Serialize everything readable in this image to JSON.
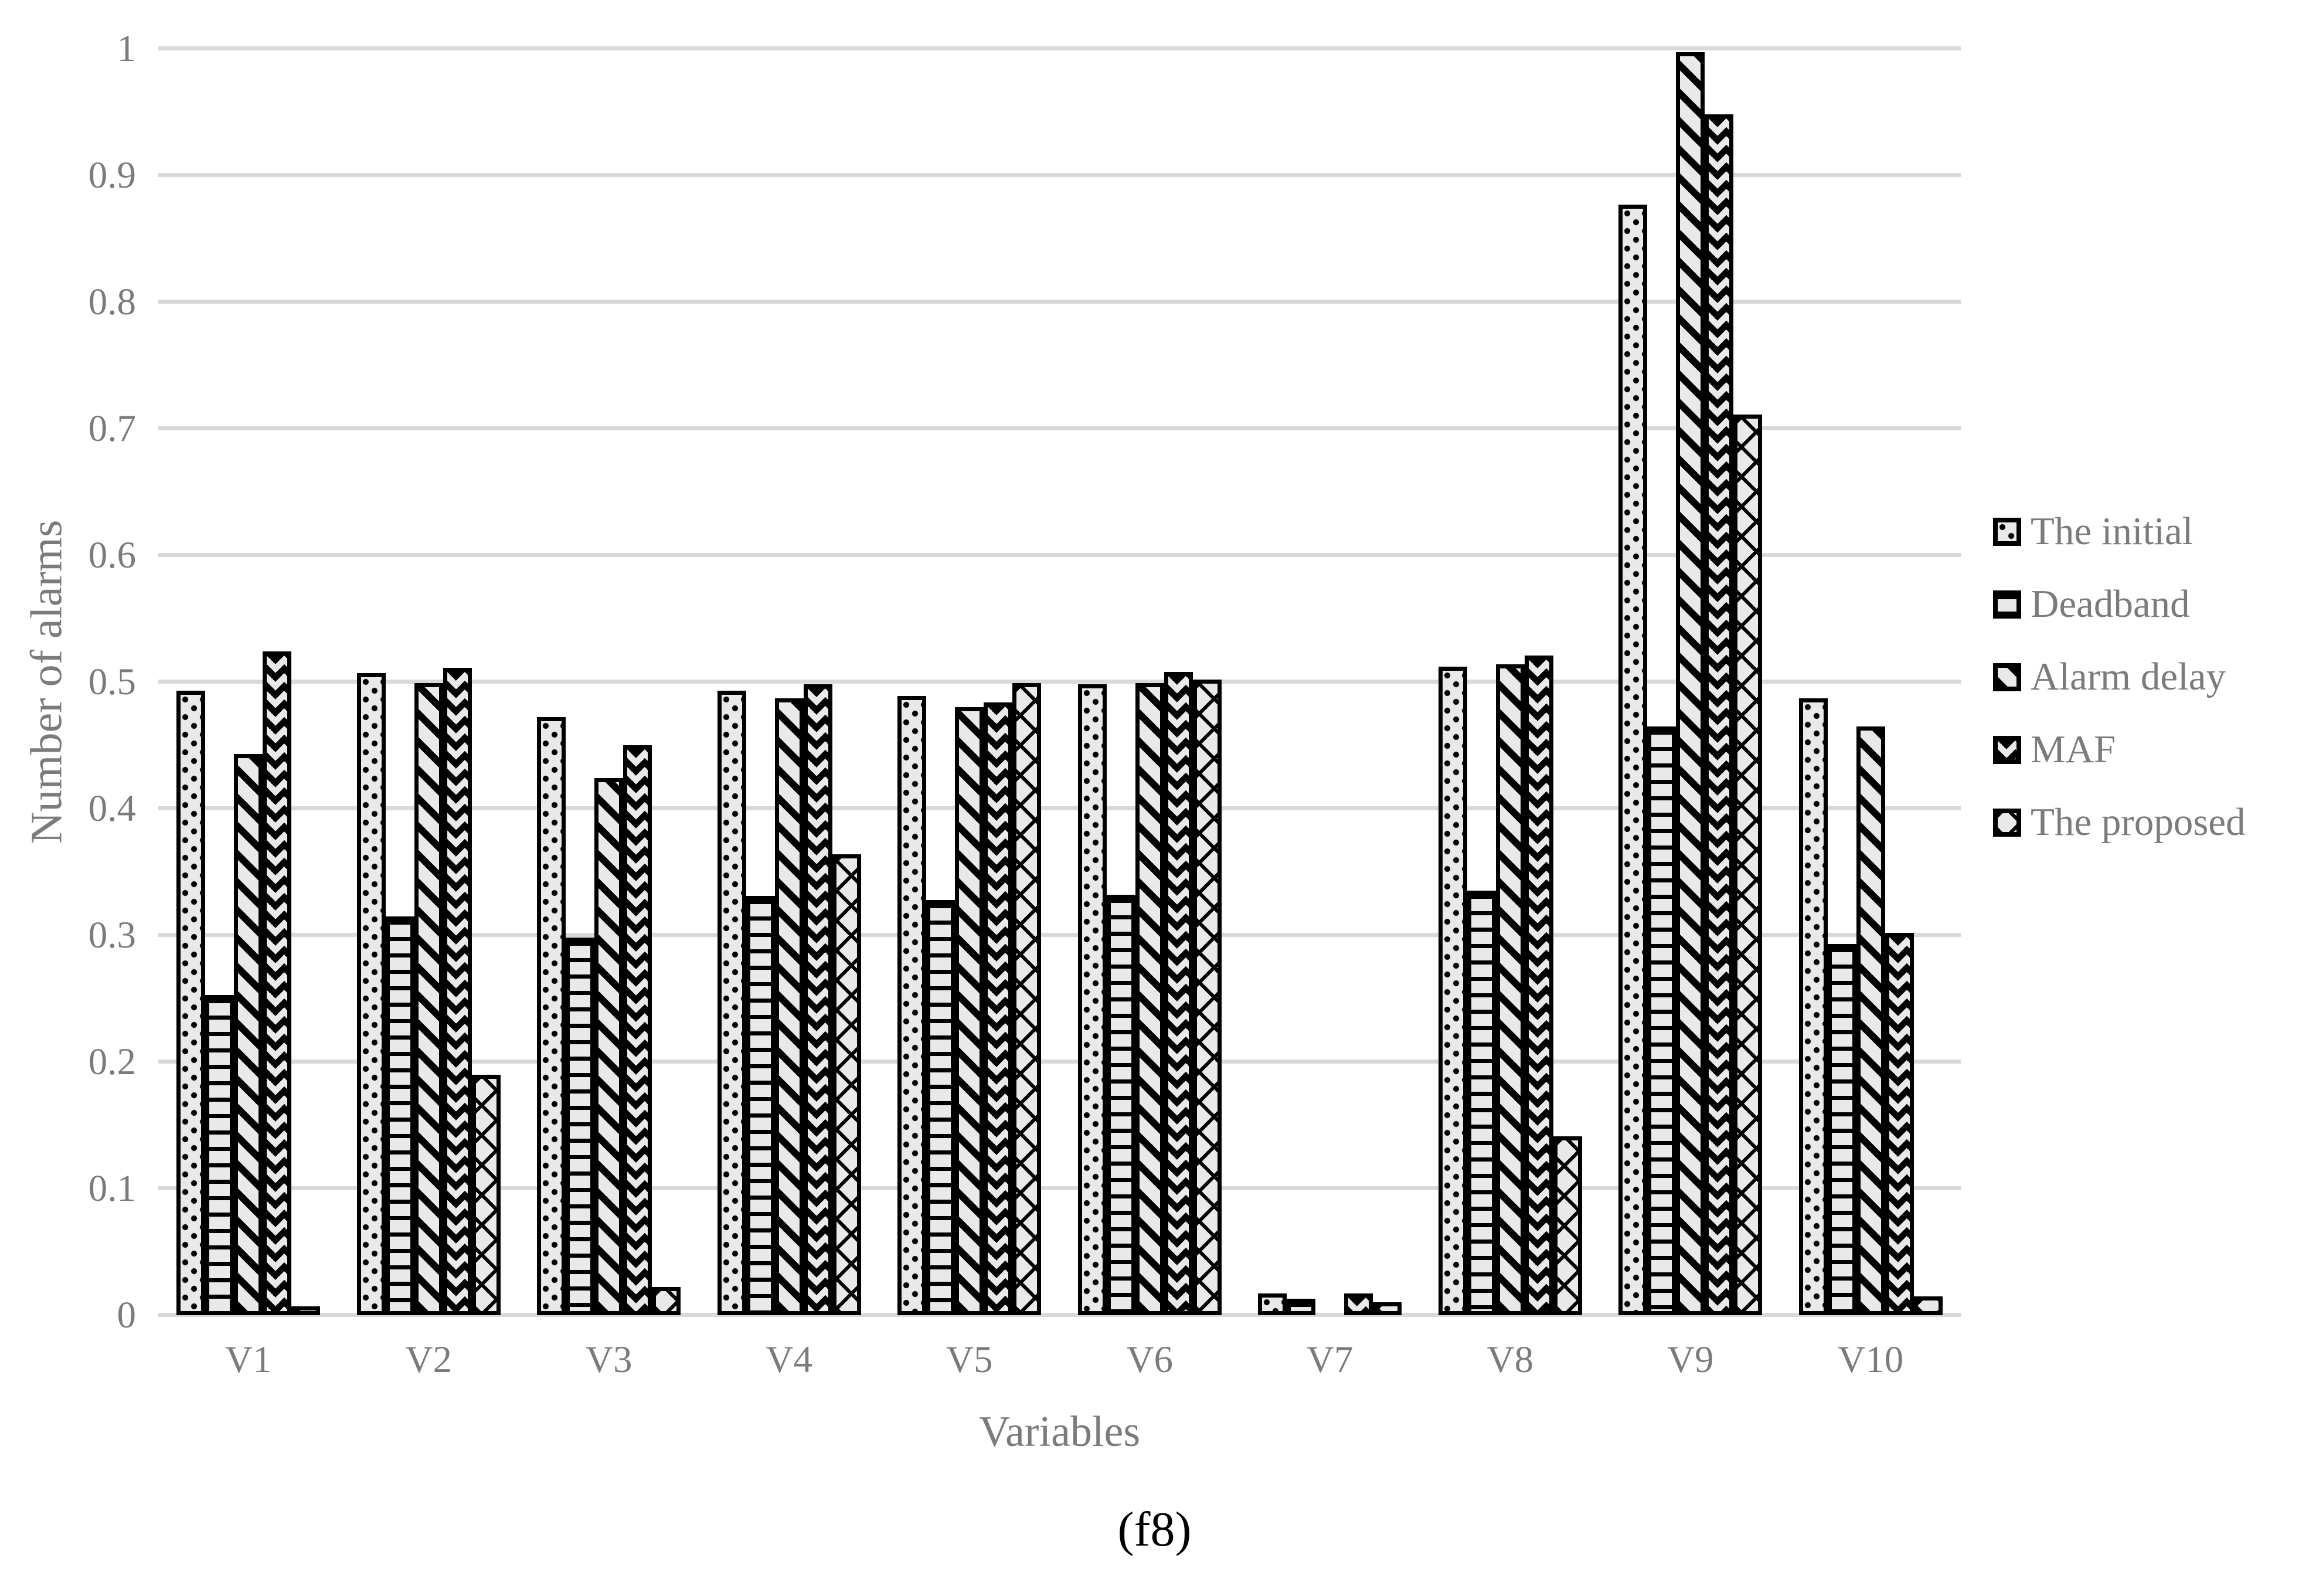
{
  "chart_data": {
    "type": "bar",
    "title": "",
    "caption": "(f8)",
    "xlabel": "Variables",
    "ylabel": "Number of alarms",
    "ylim": [
      0,
      1
    ],
    "yticks": [
      "0",
      "0.1",
      "0.2",
      "0.3",
      "0.4",
      "0.5",
      "0.6",
      "0.7",
      "0.8",
      "0.9",
      "1"
    ],
    "grid": true,
    "legend_position": "right",
    "categories": [
      "V1",
      "V2",
      "V3",
      "V4",
      "V5",
      "V6",
      "V7",
      "V8",
      "V9",
      "V10"
    ],
    "series": [
      {
        "name": "The initial",
        "pattern": "dots",
        "values": [
          0.493,
          0.507,
          0.472,
          0.493,
          0.489,
          0.498,
          0.017,
          0.512,
          0.877,
          0.487
        ]
      },
      {
        "name": "Deadband",
        "pattern": "hlines",
        "values": [
          0.253,
          0.315,
          0.298,
          0.331,
          0.328,
          0.332,
          0.013,
          0.335,
          0.465,
          0.293
        ]
      },
      {
        "name": "Alarm delay",
        "pattern": "diag",
        "values": [
          0.443,
          0.499,
          0.424,
          0.487,
          0.48,
          0.499,
          0.0,
          0.514,
          0.997,
          0.465
        ]
      },
      {
        "name": "MAF",
        "pattern": "chev",
        "values": [
          0.524,
          0.511,
          0.45,
          0.498,
          0.484,
          0.508,
          0.017,
          0.521,
          0.948,
          0.302
        ]
      },
      {
        "name": "The proposed",
        "pattern": "cross",
        "values": [
          0.007,
          0.19,
          0.022,
          0.364,
          0.499,
          0.502,
          0.01,
          0.141,
          0.711,
          0.015
        ]
      }
    ],
    "colors": {
      "bar_fill": "#e9e9e9",
      "pattern": "#000000",
      "gridline": "#d9d9d9",
      "text": "#7b7b7b",
      "caption_text": "#000000",
      "background": "#ffffff"
    }
  }
}
